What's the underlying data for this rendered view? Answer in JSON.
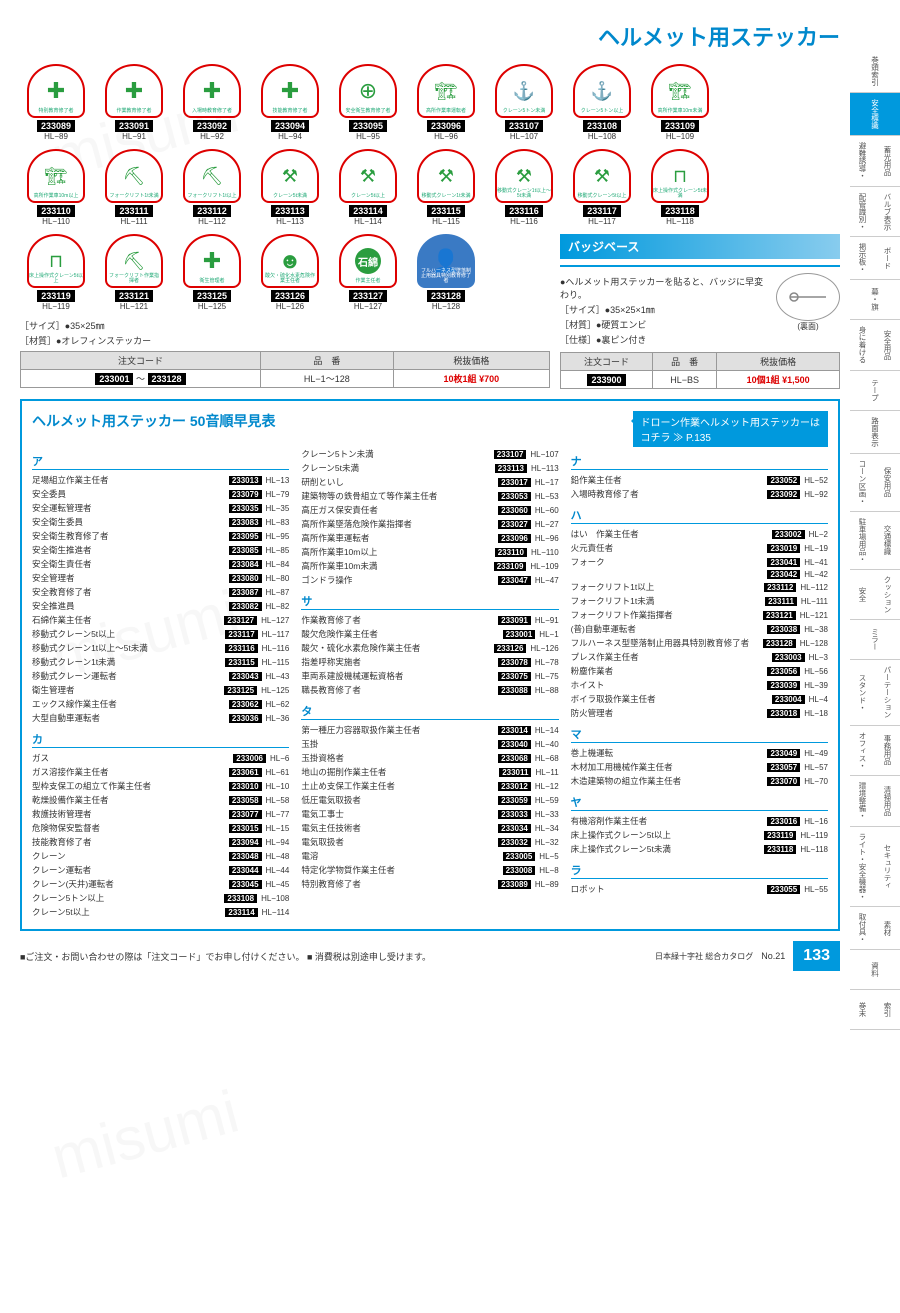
{
  "title": "ヘルメット用ステッカー",
  "watermark": "misumi",
  "stickers_row1": [
    {
      "code": "233089",
      "hl": "HL−89",
      "text": "特別教育修了者",
      "icon": "✚",
      "cls": "green"
    },
    {
      "code": "233091",
      "hl": "HL−91",
      "text": "作業教育修了者",
      "icon": "✚",
      "cls": "green"
    },
    {
      "code": "233092",
      "hl": "HL−92",
      "text": "入場時教育修了者",
      "icon": "✚",
      "cls": "green"
    },
    {
      "code": "233094",
      "hl": "HL−94",
      "text": "技能教育修了者",
      "icon": "✚",
      "cls": "green"
    },
    {
      "code": "233095",
      "hl": "HL−95",
      "text": "安全衛生教育修了者",
      "icon": "⊕",
      "cls": "green"
    },
    {
      "code": "233096",
      "hl": "HL−96",
      "text": "高所作業車運転者",
      "icon": "🏗",
      "cls": "crane"
    },
    {
      "code": "233107",
      "hl": "HL−107",
      "text": "クレーン5トン未満",
      "icon": "⚓",
      "cls": "crane"
    },
    {
      "code": "233108",
      "hl": "HL−108",
      "text": "クレーン5トン以上",
      "icon": "⚓",
      "cls": "crane"
    },
    {
      "code": "233109",
      "hl": "HL−109",
      "text": "高所作業車10m未満",
      "icon": "🏗",
      "cls": "crane"
    }
  ],
  "stickers_row2": [
    {
      "code": "233110",
      "hl": "HL−110",
      "text": "高所作業車10m以上",
      "icon": "🏗",
      "cls": "crane"
    },
    {
      "code": "233111",
      "hl": "HL−111",
      "text": "フォークリフト1t未満",
      "icon": "⛏",
      "cls": "crane"
    },
    {
      "code": "233112",
      "hl": "HL−112",
      "text": "フォークリフト1t以上",
      "icon": "⛏",
      "cls": "crane"
    },
    {
      "code": "233113",
      "hl": "HL−113",
      "text": "クレーン5t未満",
      "icon": "⚒",
      "cls": "crane"
    },
    {
      "code": "233114",
      "hl": "HL−114",
      "text": "クレーン5t以上",
      "icon": "⚒",
      "cls": "crane"
    },
    {
      "code": "233115",
      "hl": "HL−115",
      "text": "移動式クレーン1t未満",
      "icon": "⚒",
      "cls": "crane"
    },
    {
      "code": "233116",
      "hl": "HL−116",
      "text": "移動式クレーン1t以上〜5t未満",
      "icon": "⚒",
      "cls": "crane"
    },
    {
      "code": "233117",
      "hl": "HL−117",
      "text": "移動式クレーン5t以上",
      "icon": "⚒",
      "cls": "crane"
    },
    {
      "code": "233118",
      "hl": "HL−118",
      "text": "床上操作式クレーン5t未満",
      "icon": "⊓",
      "cls": "crane"
    }
  ],
  "stickers_row3": [
    {
      "code": "233119",
      "hl": "HL−119",
      "text": "床上操作式クレーン5t以上",
      "icon": "⊓",
      "cls": "crane"
    },
    {
      "code": "233121",
      "hl": "HL−121",
      "text": "フォークリフト作業指揮者",
      "icon": "⛏",
      "cls": "crane"
    },
    {
      "code": "233125",
      "hl": "HL−125",
      "text": "衛生管理者",
      "icon": "✚",
      "cls": "green"
    },
    {
      "code": "233126",
      "hl": "HL−126",
      "text": "酸欠・硫化水素危険作業主任者",
      "icon": "☻",
      "cls": "green"
    },
    {
      "code": "233127",
      "hl": "HL−127",
      "text": "作業主任者",
      "icon": "石綿",
      "cls": "stone"
    },
    {
      "code": "233128",
      "hl": "HL−128",
      "text": "フルハーネス型墜落制止用器具特別教育修了者",
      "icon": "👤",
      "cls": "blue"
    }
  ],
  "spec": {
    "size": "［サイズ］●35×25㎜",
    "material": "［材質］●オレフィンステッカー"
  },
  "price_table": {
    "headers": [
      "注文コード",
      "品　番",
      "税抜価格"
    ],
    "code_from": "233001",
    "code_to": "233128",
    "tilde": "〜",
    "item": "HL−1〜128",
    "note": "10枚1組",
    "price": "¥700"
  },
  "badge": {
    "header": "バッジベース",
    "desc": "●ヘルメット用ステッカーを貼ると、バッジに早変わり。",
    "size": "［サイズ］●35×25×1㎜",
    "material": "［材質］●硬質エンビ",
    "spec": "［仕様］●裏ピン付き",
    "back_label": "(裏面)",
    "headers": [
      "注文コード",
      "品　番",
      "税抜価格"
    ],
    "code": "233900",
    "item": "HL−BS",
    "note": "10個1組",
    "price": "¥1,500"
  },
  "index": {
    "title": "ヘルメット用ステッカー 50音順早見表",
    "drone_link": "ドローン作業ヘルメット用ステッカーは",
    "drone_ref": "コチラ ≫ P.135",
    "groups": {
      "ア": [
        {
          "n": "足場組立作業主任者",
          "c": "233013",
          "h": "HL−13"
        },
        {
          "n": "安全委員",
          "c": "233079",
          "h": "HL−79"
        },
        {
          "n": "安全運転管理者",
          "c": "233035",
          "h": "HL−35"
        },
        {
          "n": "安全衛生委員",
          "c": "233083",
          "h": "HL−83"
        },
        {
          "n": "安全衛生教育修了者",
          "c": "233095",
          "h": "HL−95"
        },
        {
          "n": "安全衛生推進者",
          "c": "233085",
          "h": "HL−85"
        },
        {
          "n": "安全衛生責任者",
          "c": "233084",
          "h": "HL−84"
        },
        {
          "n": "安全管理者",
          "c": "233080",
          "h": "HL−80"
        },
        {
          "n": "安全教育修了者",
          "c": "233087",
          "h": "HL−87"
        },
        {
          "n": "安全推進員",
          "c": "233082",
          "h": "HL−82"
        },
        {
          "n": "石綿作業主任者",
          "c": "233127",
          "h": "HL−127"
        },
        {
          "n": "移動式クレーン5t以上",
          "c": "233117",
          "h": "HL−117"
        },
        {
          "n": "移動式クレーン1t以上〜5t未満",
          "c": "233116",
          "h": "HL−116"
        },
        {
          "n": "移動式クレーン1t未満",
          "c": "233115",
          "h": "HL−115"
        },
        {
          "n": "移動式クレーン運転者",
          "c": "233043",
          "h": "HL−43"
        },
        {
          "n": "衛生管理者",
          "c": "233125",
          "h": "HL−125"
        },
        {
          "n": "エックス線作業主任者",
          "c": "233062",
          "h": "HL−62"
        },
        {
          "n": "大型自動車運転者",
          "c": "233036",
          "h": "HL−36"
        }
      ],
      "カ": [
        {
          "n": "ガス",
          "c": "233006",
          "h": "HL−6"
        },
        {
          "n": "ガス溶接作業主任者",
          "c": "233061",
          "h": "HL−61"
        },
        {
          "n": "型枠支保工の組立て作業主任者",
          "c": "233010",
          "h": "HL−10"
        },
        {
          "n": "乾燥設備作業主任者",
          "c": "233058",
          "h": "HL−58"
        },
        {
          "n": "救護技術管理者",
          "c": "233077",
          "h": "HL−77"
        },
        {
          "n": "危険物保安監督者",
          "c": "233015",
          "h": "HL−15"
        },
        {
          "n": "技能教育修了者",
          "c": "233094",
          "h": "HL−94"
        },
        {
          "n": "クレーン",
          "c": "233048",
          "h": "HL−48"
        },
        {
          "n": "クレーン運転者",
          "c": "233044",
          "h": "HL−44"
        },
        {
          "n": "クレーン(天井)運転者",
          "c": "233045",
          "h": "HL−45"
        },
        {
          "n": "クレーン5トン以上",
          "c": "233108",
          "h": "HL−108"
        },
        {
          "n": "クレーン5t以上",
          "c": "233114",
          "h": "HL−114"
        }
      ],
      "_col2top": [
        {
          "n": "クレーン5トン未満",
          "c": "233107",
          "h": "HL−107"
        },
        {
          "n": "クレーン5t未満",
          "c": "233113",
          "h": "HL−113"
        },
        {
          "n": "研削といし",
          "c": "233017",
          "h": "HL−17"
        },
        {
          "n": "建築物等の鉄骨組立て等作業主任者",
          "c": "233053",
          "h": "HL−53"
        },
        {
          "n": "高圧ガス保安責任者",
          "c": "233060",
          "h": "HL−60"
        },
        {
          "n": "高所作業墜落危険作業指揮者",
          "c": "233027",
          "h": "HL−27"
        },
        {
          "n": "高所作業車運転者",
          "c": "233096",
          "h": "HL−96"
        },
        {
          "n": "高所作業車10m以上",
          "c": "233110",
          "h": "HL−110"
        },
        {
          "n": "高所作業車10m未満",
          "c": "233109",
          "h": "HL−109"
        },
        {
          "n": "ゴンドラ操作",
          "c": "233047",
          "h": "HL−47"
        }
      ],
      "サ": [
        {
          "n": "作業教育修了者",
          "c": "233091",
          "h": "HL−91"
        },
        {
          "n": "酸欠危険作業主任者",
          "c": "233001",
          "h": "HL−1"
        },
        {
          "n": "酸欠・硫化水素危険作業主任者",
          "c": "233126",
          "h": "HL−126"
        },
        {
          "n": "指差呼称実施者",
          "c": "233078",
          "h": "HL−78"
        },
        {
          "n": "車両系建設機械運転資格者",
          "c": "233075",
          "h": "HL−75"
        },
        {
          "n": "職長教育修了者",
          "c": "233088",
          "h": "HL−88"
        }
      ],
      "タ": [
        {
          "n": "第一種圧力容器取扱作業主任者",
          "c": "233014",
          "h": "HL−14"
        },
        {
          "n": "玉掛",
          "c": "233040",
          "h": "HL−40"
        },
        {
          "n": "玉掛資格者",
          "c": "233068",
          "h": "HL−68"
        },
        {
          "n": "地山の掘削作業主任者",
          "c": "233011",
          "h": "HL−11"
        },
        {
          "n": "土止め支保工作業主任者",
          "c": "233012",
          "h": "HL−12"
        },
        {
          "n": "低圧電気取扱者",
          "c": "233059",
          "h": "HL−59"
        },
        {
          "n": "電気工事士",
          "c": "233033",
          "h": "HL−33"
        },
        {
          "n": "電気主任技術者",
          "c": "233034",
          "h": "HL−34"
        },
        {
          "n": "電気取扱者",
          "c": "233032",
          "h": "HL−32"
        },
        {
          "n": "電溶",
          "c": "233005",
          "h": "HL−5"
        },
        {
          "n": "特定化学物質作業主任者",
          "c": "233008",
          "h": "HL−8"
        },
        {
          "n": "特別教育修了者",
          "c": "233089",
          "h": "HL−89"
        }
      ],
      "ナ": [
        {
          "n": "鉛作業主任者",
          "c": "233052",
          "h": "HL−52"
        },
        {
          "n": "入場時教育修了者",
          "c": "233092",
          "h": "HL−92"
        }
      ],
      "ハ": [
        {
          "n": "はい　作業主任者",
          "c": "233002",
          "h": "HL−2"
        },
        {
          "n": "火元責任者",
          "c": "233019",
          "h": "HL−19"
        },
        {
          "n": "フォーク",
          "c": "233041",
          "h": "HL−41"
        },
        {
          "n": "",
          "c": "233042",
          "h": "HL−42"
        },
        {
          "n": "フォークリフト1t以上",
          "c": "233112",
          "h": "HL−112"
        },
        {
          "n": "フォークリフト1t未満",
          "c": "233111",
          "h": "HL−111"
        },
        {
          "n": "フォークリフト作業指揮者",
          "c": "233121",
          "h": "HL−121"
        },
        {
          "n": "(普)自動車運転者",
          "c": "233038",
          "h": "HL−38"
        },
        {
          "n": "フルハーネス型墜落制止用器具特別教育修了者",
          "c": "233128",
          "h": "HL−128"
        },
        {
          "n": "プレス作業主任者",
          "c": "233003",
          "h": "HL−3"
        },
        {
          "n": "粉塵作業者",
          "c": "233056",
          "h": "HL−56"
        },
        {
          "n": "ホイスト",
          "c": "233039",
          "h": "HL−39"
        },
        {
          "n": "ボイラ取扱作業主任者",
          "c": "233004",
          "h": "HL−4"
        },
        {
          "n": "防火管理者",
          "c": "233018",
          "h": "HL−18"
        }
      ],
      "マ": [
        {
          "n": "巻上機運転",
          "c": "233049",
          "h": "HL−49"
        },
        {
          "n": "木材加工用機械作業主任者",
          "c": "233057",
          "h": "HL−57"
        },
        {
          "n": "木造建築物の組立作業主任者",
          "c": "233070",
          "h": "HL−70"
        }
      ],
      "ヤ": [
        {
          "n": "有機溶剤作業主任者",
          "c": "233016",
          "h": "HL−16"
        },
        {
          "n": "床上操作式クレーン5t以上",
          "c": "233119",
          "h": "HL−119"
        },
        {
          "n": "床上操作式クレーン5t未満",
          "c": "233118",
          "h": "HL−118"
        }
      ],
      "ラ": [
        {
          "n": "ロボット",
          "c": "233055",
          "h": "HL−55"
        }
      ]
    }
  },
  "footer": {
    "note1": "■ご注文・お問い合わせの際は「注文コード」でお申し付けください。",
    "note2": "■ 消費税は別途申し受けます。",
    "catalog": "日本緑十字社 総合カタログ",
    "catalog_no": "No.21",
    "page": "133"
  },
  "tabs": [
    {
      "l": "巻頭索引",
      "r": ""
    },
    {
      "l": "安全標識",
      "r": "",
      "active": true
    },
    {
      "l": "蓄光用品",
      "r": "避難誘導・"
    },
    {
      "l": "バルブ表示",
      "r": "配管識別・"
    },
    {
      "l": "ボード",
      "r": "掲示板・"
    },
    {
      "l": "幕・旗",
      "r": ""
    },
    {
      "l": "安全用品",
      "r": "身に着ける"
    },
    {
      "l": "テープ",
      "r": ""
    },
    {
      "l": "路面表示",
      "r": ""
    },
    {
      "l": "保安用品",
      "r": "コーン区画・"
    },
    {
      "l": "交通標識",
      "r": "駐車場用品・"
    },
    {
      "l": "クッション",
      "r": "安全"
    },
    {
      "l": "ミラー",
      "r": ""
    },
    {
      "l": "パーテーション",
      "r": "スタンド・"
    },
    {
      "l": "事務用品",
      "r": "オフィス・"
    },
    {
      "l": "清掃用品",
      "r": "環境整備・"
    },
    {
      "l": "セキュリティ",
      "r": "ライト・安全機器・"
    },
    {
      "l": "素材",
      "r": "取付具・"
    },
    {
      "l": "資料",
      "r": ""
    },
    {
      "l": "索引",
      "r": "巻末"
    }
  ]
}
